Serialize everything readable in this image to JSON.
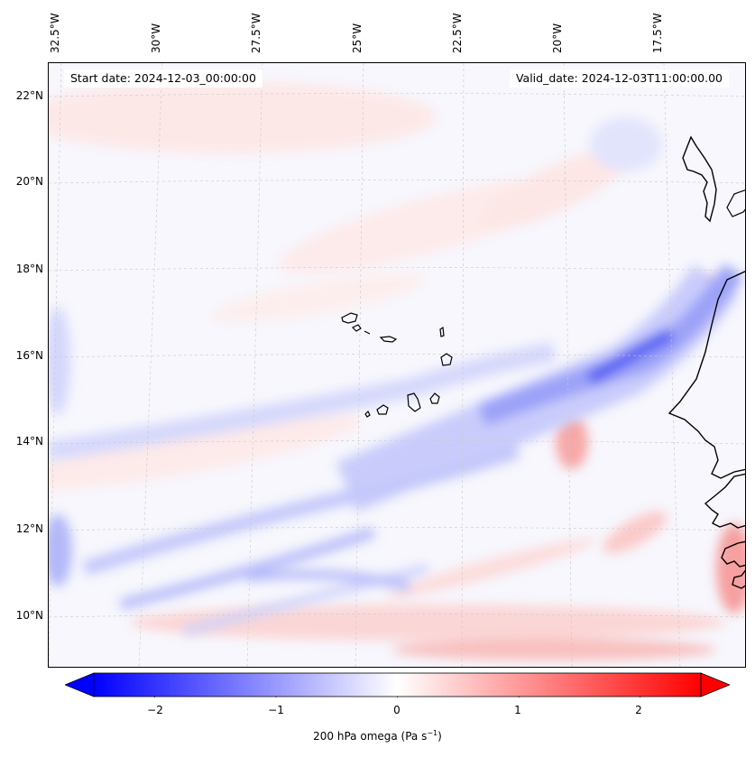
{
  "map": {
    "start_date": "Start date: 2024-12-03_00:00:00",
    "valid_date": "Valid_date: 2024-12-03T11:00:00.00",
    "lon_labels": [
      "32.5°W",
      "30°W",
      "27.5°W",
      "25°W",
      "22.5°W",
      "20°W",
      "17.5°W"
    ],
    "lat_labels": [
      "22°N",
      "20°N",
      "18°N",
      "16°N",
      "14°N",
      "12°N",
      "10°N"
    ]
  },
  "colorbar": {
    "ticks": [
      "−2",
      "−1",
      "0",
      "1",
      "2"
    ],
    "tick_values": [
      -2,
      -1,
      0,
      1,
      2
    ],
    "range": [
      -2.5,
      2.5
    ],
    "title": "200 hPa omega (Pa s",
    "title_sup": "−1",
    "title_close": ")",
    "colors": {
      "negative": "#0000ff",
      "zero": "#ffffff",
      "positive": "#ff0000"
    }
  },
  "colors": {
    "coastline": "#000000",
    "gridline": "#b0b0b0"
  }
}
